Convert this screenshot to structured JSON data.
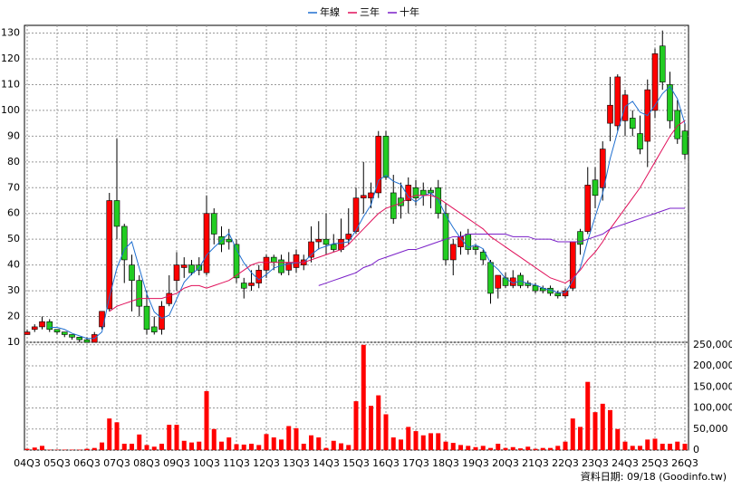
{
  "chart_data": [
    {
      "type": "candlestick",
      "categories": [
        "04Q3",
        null,
        null,
        null,
        "05Q3",
        null,
        null,
        null,
        "06Q3",
        null,
        null,
        null,
        "07Q3",
        null,
        null,
        null,
        "08Q3",
        null,
        null,
        null,
        "09Q3",
        null,
        null,
        null,
        "10Q3",
        null,
        null,
        null,
        "11Q3",
        null,
        null,
        null,
        "12Q3",
        null,
        null,
        null,
        "13Q3",
        null,
        null,
        null,
        "14Q3",
        null,
        null,
        null,
        "15Q3",
        null,
        null,
        null,
        "16Q3",
        null,
        null,
        null,
        "17Q3",
        null,
        null,
        null,
        "18Q3",
        null,
        null,
        null,
        "19Q3",
        null,
        null,
        null,
        "20Q3",
        null,
        null,
        null,
        "21Q3",
        null,
        null,
        null,
        "22Q3",
        null,
        null,
        null,
        "23Q3",
        null,
        null,
        null,
        "24Q3",
        null,
        null,
        null,
        "25Q3",
        null,
        null,
        null,
        "26Q3"
      ],
      "open": [
        13,
        15,
        16,
        18,
        15,
        14,
        13,
        12,
        11,
        10,
        16,
        23,
        65,
        55,
        40,
        34,
        24,
        16,
        15,
        25,
        34,
        39,
        40,
        40,
        37,
        60,
        51,
        50,
        48,
        33,
        32,
        33,
        38,
        43,
        42,
        38,
        39,
        40,
        43,
        49,
        50,
        48,
        46,
        50,
        53,
        66,
        66,
        68,
        90,
        68,
        66,
        65,
        70,
        69,
        69,
        70,
        60,
        42,
        47,
        52,
        47,
        45,
        41,
        31,
        35,
        32,
        36,
        33,
        32,
        31,
        31,
        29,
        28,
        31,
        53,
        53,
        73,
        70,
        95,
        94,
        96,
        97,
        91,
        88,
        100,
        125,
        110,
        100,
        92
      ],
      "high": [
        15,
        17,
        20,
        19,
        15,
        14,
        13,
        12,
        12,
        14,
        22,
        68,
        89,
        56,
        44,
        36,
        30,
        20,
        26,
        36,
        45,
        43,
        42,
        43,
        67,
        62,
        55,
        54,
        50,
        35,
        38,
        40,
        44,
        44,
        44,
        45,
        46,
        44,
        55,
        57,
        60,
        52,
        58,
        62,
        70,
        80,
        72,
        92,
        92,
        75,
        72,
        74,
        73,
        72,
        70,
        73,
        64,
        50,
        53,
        54,
        48,
        46,
        42,
        36,
        37,
        38,
        37,
        34,
        33,
        32,
        32,
        30,
        31,
        49,
        54,
        78,
        78,
        88,
        113,
        114,
        108,
        100,
        98,
        112,
        124,
        131,
        115,
        104,
        95
      ],
      "low": [
        13,
        14,
        15,
        14,
        13,
        12,
        11,
        10,
        10,
        10,
        15,
        22,
        50,
        33,
        22,
        20,
        13,
        13,
        13,
        24,
        30,
        35,
        36,
        36,
        36,
        48,
        45,
        46,
        33,
        27,
        30,
        31,
        35,
        38,
        36,
        36,
        37,
        38,
        41,
        46,
        44,
        45,
        45,
        48,
        52,
        60,
        62,
        66,
        73,
        56,
        58,
        60,
        63,
        63,
        62,
        58,
        40,
        36,
        44,
        44,
        44,
        40,
        25,
        27,
        31,
        31,
        31,
        31,
        29,
        29,
        28,
        27,
        27,
        30,
        44,
        52,
        62,
        65,
        88,
        92,
        90,
        90,
        83,
        78,
        97,
        108,
        93,
        87,
        81
      ],
      "close": [
        14,
        16,
        18,
        15,
        14,
        13,
        12,
        11,
        10,
        13,
        22,
        65,
        55,
        42,
        34,
        24,
        15,
        14,
        24,
        29,
        40,
        40,
        37,
        38,
        60,
        52,
        48,
        49,
        35,
        31,
        33,
        38,
        43,
        41,
        37,
        41,
        44,
        42,
        49,
        50,
        48,
        46,
        50,
        52,
        66,
        67,
        68,
        90,
        74,
        58,
        63,
        71,
        66,
        67,
        68,
        60,
        42,
        48,
        51,
        46,
        46,
        42,
        29,
        36,
        32,
        35,
        32,
        32,
        30,
        30,
        29,
        28,
        30,
        49,
        48,
        71,
        67,
        85,
        102,
        113,
        106,
        93,
        85,
        108,
        122,
        111,
        96,
        89,
        83
      ],
      "up_color": "#ff0000",
      "down_color": "#22cc22",
      "series": [
        {
          "name": "年線",
          "color": "#1f6fd0",
          "values": [
            null,
            null,
            null,
            15.8,
            15.8,
            15,
            13.5,
            12.5,
            11.5,
            11.5,
            14,
            27.5,
            38.8,
            46,
            49,
            38.8,
            28.8,
            21.8,
            19.3,
            20.5,
            26.8,
            33.3,
            36.5,
            38.8,
            43.8,
            46.8,
            49.5,
            52.3,
            46,
            40.8,
            37,
            34.3,
            36.3,
            38.8,
            39.8,
            40.5,
            40.8,
            41,
            44,
            46.3,
            47.3,
            48.3,
            48.5,
            49,
            53.5,
            58.8,
            63.3,
            72.8,
            74.8,
            72.5,
            71.3,
            66.5,
            64.5,
            66.8,
            68,
            65.3,
            59.3,
            54.5,
            50.3,
            46.8,
            47.8,
            46.3,
            40.8,
            38.3,
            34.8,
            33,
            33.8,
            32.8,
            32.3,
            31,
            30.3,
            29.3,
            29.3,
            34,
            38.8,
            49.5,
            58.8,
            67.8,
            81.3,
            91.8,
            101.5,
            103.5,
            99.3,
            98,
            102,
            106.5,
            109.3,
            104.5,
            94.8
          ]
        },
        {
          "name": "三年",
          "color": "#e0105a",
          "values": [
            null,
            null,
            null,
            null,
            null,
            null,
            null,
            null,
            null,
            null,
            null,
            22,
            24,
            25,
            26,
            27,
            27,
            27,
            27,
            28,
            29,
            31,
            32,
            32,
            31,
            32,
            33,
            34,
            36,
            38,
            40,
            41,
            41,
            41,
            41,
            41,
            41,
            41,
            42,
            43,
            44,
            45,
            46,
            48,
            51,
            54,
            57,
            60,
            62,
            63,
            64,
            66,
            67,
            67,
            67,
            66,
            64,
            62,
            60,
            58,
            56,
            54,
            51,
            49,
            47,
            45,
            43,
            41,
            39,
            37,
            35,
            34,
            33,
            35,
            38,
            42,
            45,
            49,
            54,
            58,
            62,
            66,
            70,
            75,
            80,
            85,
            90,
            94,
            96
          ]
        },
        {
          "name": "十年",
          "color": "#7a1fc8",
          "values": [
            null,
            null,
            null,
            null,
            null,
            null,
            null,
            null,
            null,
            null,
            null,
            null,
            null,
            null,
            null,
            null,
            null,
            null,
            null,
            null,
            null,
            null,
            null,
            null,
            null,
            null,
            null,
            null,
            null,
            null,
            null,
            null,
            null,
            null,
            null,
            null,
            null,
            null,
            null,
            32,
            33,
            34,
            35,
            36,
            37,
            39,
            40,
            42,
            43,
            44,
            45,
            46,
            46,
            47,
            48,
            49,
            50,
            51,
            51,
            52,
            52,
            52,
            52,
            52,
            52,
            51,
            51,
            51,
            50,
            50,
            50,
            49,
            49,
            49,
            49,
            50,
            51,
            52,
            54,
            55,
            56,
            57,
            58,
            59,
            60,
            61,
            62,
            62,
            62
          ]
        }
      ],
      "ylim": [
        10,
        133
      ],
      "yticks": [
        10,
        20,
        30,
        40,
        50,
        60,
        70,
        80,
        90,
        100,
        110,
        120,
        130
      ],
      "grid": true,
      "legend": "top"
    },
    {
      "type": "bar",
      "color": "#ff0000",
      "values": [
        3000,
        6000,
        10000,
        1000,
        1000,
        1000,
        1000,
        1000,
        3000,
        5000,
        18000,
        75000,
        66000,
        15000,
        15000,
        37000,
        12000,
        8000,
        15000,
        60000,
        60000,
        22000,
        18000,
        20000,
        140000,
        50000,
        20000,
        30000,
        14000,
        13000,
        15000,
        12000,
        38000,
        30000,
        25000,
        57000,
        52000,
        15000,
        35000,
        30000,
        5000,
        22000,
        16000,
        12000,
        116000,
        250000,
        105000,
        130000,
        85000,
        30000,
        25000,
        55000,
        45000,
        35000,
        40000,
        40000,
        20000,
        17000,
        12000,
        10000,
        7000,
        10000,
        5000,
        15000,
        5000,
        7000,
        4000,
        8000,
        3000,
        5000,
        5000,
        10000,
        20000,
        75000,
        55000,
        162000,
        90000,
        110000,
        95000,
        50000,
        20000,
        10000,
        10000,
        25000,
        27000,
        15000,
        15000,
        20000,
        15000
      ],
      "ylim": [
        0,
        256000
      ],
      "yticks": [
        0,
        {
          "value": 50000,
          "label": "50,000"
        },
        {
          "value": 100000,
          "label": "100,000"
        },
        {
          "value": 150000,
          "label": "150,000"
        },
        {
          "value": 200000,
          "label": "200,000"
        },
        {
          "value": 250000,
          "label": "250,000"
        }
      ],
      "grid": true
    }
  ],
  "footer": "資料日期: 09/18 (Goodinfo.tw)"
}
